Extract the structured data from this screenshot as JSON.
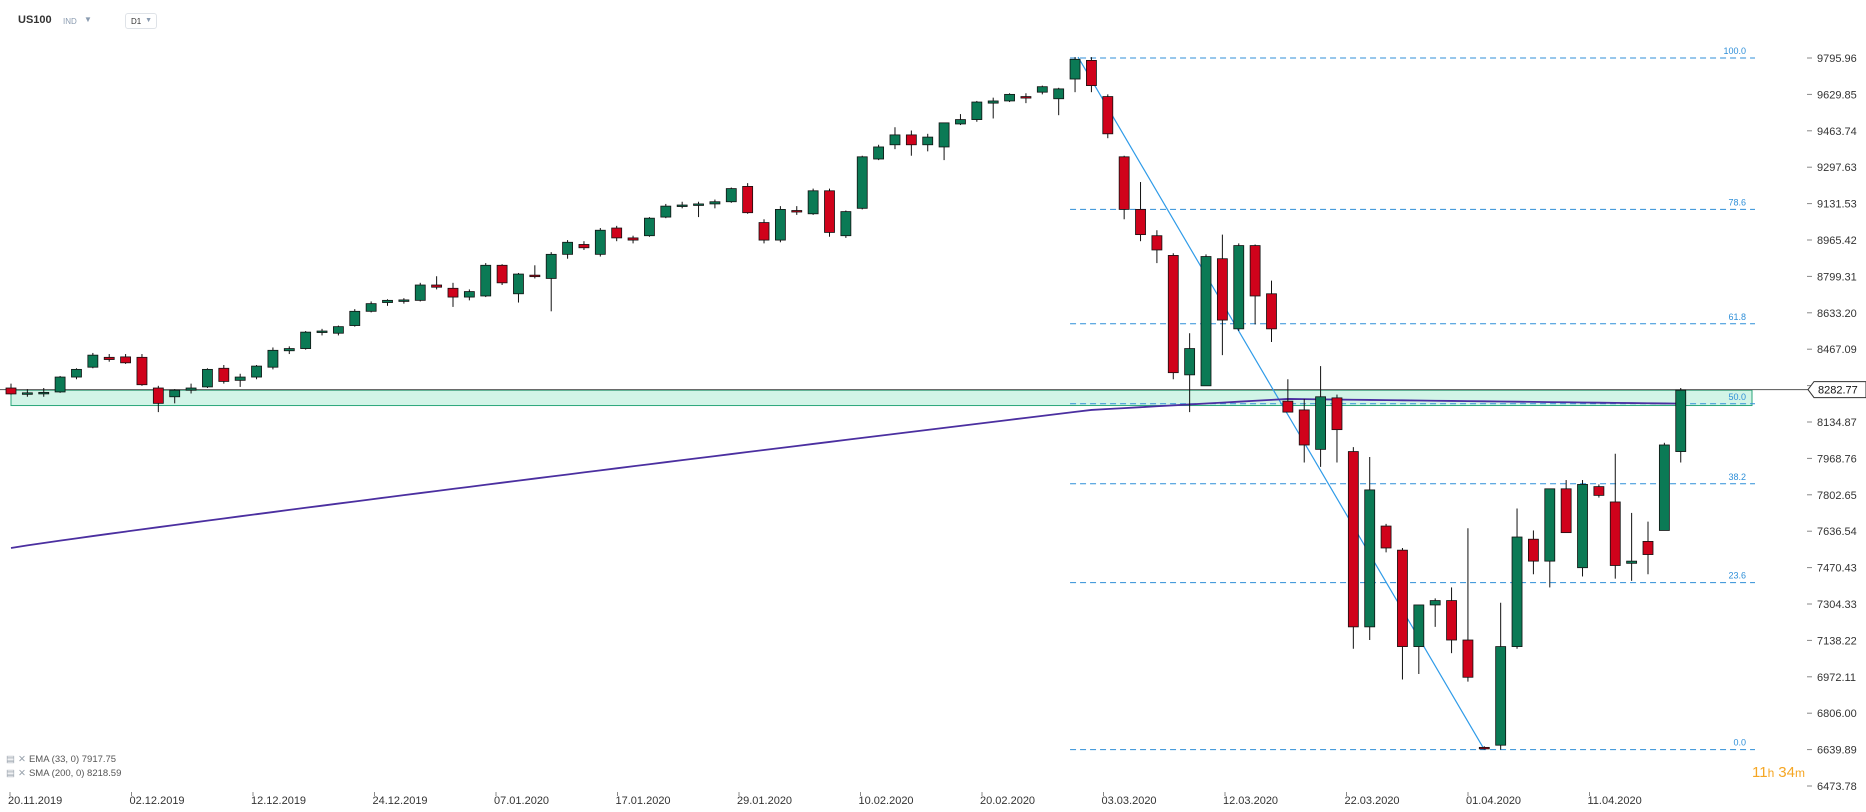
{
  "header": {
    "symbol": "US100",
    "type": "IND",
    "timeframe": "D1"
  },
  "indicators": [
    {
      "label": "EMA (33, 0) 7917.75",
      "color": "#3d3d9e"
    },
    {
      "label": "SMA (200, 0) 8218.59",
      "color": "#1d6fa5"
    }
  ],
  "timer": {
    "hours": "11",
    "h": "h",
    "minutes": "34",
    "m": "m"
  },
  "chart_data": {
    "type": "candlestick",
    "price_axis": {
      "ticks": [
        "9795.96",
        "9629.85",
        "9463.74",
        "9297.63",
        "9131.53",
        "8965.42",
        "8799.31",
        "8633.20",
        "8467.09",
        "8300.98",
        "8134.87",
        "7968.76",
        "7802.65",
        "7636.54",
        "7470.43",
        "7304.33",
        "7138.22",
        "6972.11",
        "6806.00",
        "6639.89",
        "6473.78"
      ],
      "range": [
        6473.78,
        9795.96
      ]
    },
    "date_axis": {
      "labels": [
        "20.11.2019",
        "02.12.2019",
        "12.12.2019",
        "24.12.2019",
        "07.01.2020",
        "17.01.2020",
        "29.01.2020",
        "10.02.2020",
        "20.02.2020",
        "03.03.2020",
        "12.03.2020",
        "22.03.2020",
        "01.04.2020",
        "11.04.2020"
      ]
    },
    "last_price": "8282.77",
    "fibonacci": {
      "levels": [
        {
          "label": "100.0",
          "price": 9795.96
        },
        {
          "label": "78.6",
          "price": 9105
        },
        {
          "label": "61.8",
          "price": 8583
        },
        {
          "label": "50.0",
          "price": 8218
        },
        {
          "label": "38.2",
          "price": 7853
        },
        {
          "label": "23.6",
          "price": 7402
        },
        {
          "label": "0.0",
          "price": 6639.89
        }
      ],
      "line": {
        "from": {
          "index": 0,
          "price": 9795.96
        },
        "to": {
          "index": 0,
          "price": 6639.89
        }
      }
    },
    "support_zone": [
      8210,
      8280
    ],
    "ema33_end": 7917.75,
    "sma200_end": 8218.59,
    "up_color": "#0b7a55",
    "down_color": "#d0021b",
    "candles": [
      {
        "o": 8290,
        "h": 8310,
        "l": 8260,
        "c": 8263
      },
      {
        "o": 8265,
        "h": 8285,
        "l": 8250,
        "c": 8268
      },
      {
        "o": 8268,
        "h": 8290,
        "l": 8250,
        "c": 8270
      },
      {
        "o": 8272,
        "h": 8345,
        "l": 8268,
        "c": 8340
      },
      {
        "o": 8340,
        "h": 8380,
        "l": 8330,
        "c": 8375
      },
      {
        "o": 8385,
        "h": 8450,
        "l": 8380,
        "c": 8440
      },
      {
        "o": 8430,
        "h": 8445,
        "l": 8410,
        "c": 8420
      },
      {
        "o": 8432,
        "h": 8445,
        "l": 8400,
        "c": 8405
      },
      {
        "o": 8430,
        "h": 8445,
        "l": 8300,
        "c": 8305
      },
      {
        "o": 8290,
        "h": 8300,
        "l": 8180,
        "c": 8220
      },
      {
        "o": 8250,
        "h": 8285,
        "l": 8220,
        "c": 8280
      },
      {
        "o": 8280,
        "h": 8310,
        "l": 8265,
        "c": 8290
      },
      {
        "o": 8295,
        "h": 8380,
        "l": 8290,
        "c": 8375
      },
      {
        "o": 8380,
        "h": 8395,
        "l": 8310,
        "c": 8320
      },
      {
        "o": 8325,
        "h": 8355,
        "l": 8295,
        "c": 8340
      },
      {
        "o": 8340,
        "h": 8395,
        "l": 8330,
        "c": 8390
      },
      {
        "o": 8385,
        "h": 8475,
        "l": 8375,
        "c": 8462
      },
      {
        "o": 8460,
        "h": 8480,
        "l": 8445,
        "c": 8470
      },
      {
        "o": 8470,
        "h": 8550,
        "l": 8465,
        "c": 8545
      },
      {
        "o": 8545,
        "h": 8560,
        "l": 8530,
        "c": 8550
      },
      {
        "o": 8540,
        "h": 8575,
        "l": 8530,
        "c": 8570
      },
      {
        "o": 8575,
        "h": 8650,
        "l": 8570,
        "c": 8640
      },
      {
        "o": 8640,
        "h": 8685,
        "l": 8635,
        "c": 8675
      },
      {
        "o": 8680,
        "h": 8695,
        "l": 8665,
        "c": 8690
      },
      {
        "o": 8690,
        "h": 8700,
        "l": 8675,
        "c": 8692
      },
      {
        "o": 8690,
        "h": 8770,
        "l": 8685,
        "c": 8760
      },
      {
        "o": 8760,
        "h": 8800,
        "l": 8740,
        "c": 8750
      },
      {
        "o": 8745,
        "h": 8770,
        "l": 8660,
        "c": 8705
      },
      {
        "o": 8705,
        "h": 8740,
        "l": 8690,
        "c": 8730
      },
      {
        "o": 8710,
        "h": 8860,
        "l": 8705,
        "c": 8850
      },
      {
        "o": 8850,
        "h": 8855,
        "l": 8760,
        "c": 8770
      },
      {
        "o": 8720,
        "h": 8815,
        "l": 8680,
        "c": 8810
      },
      {
        "o": 8805,
        "h": 8850,
        "l": 8790,
        "c": 8800
      },
      {
        "o": 8790,
        "h": 8910,
        "l": 8640,
        "c": 8900
      },
      {
        "o": 8900,
        "h": 8965,
        "l": 8880,
        "c": 8955
      },
      {
        "o": 8945,
        "h": 8960,
        "l": 8920,
        "c": 8930
      },
      {
        "o": 8900,
        "h": 9020,
        "l": 8890,
        "c": 9010
      },
      {
        "o": 9020,
        "h": 9030,
        "l": 8960,
        "c": 8975
      },
      {
        "o": 8975,
        "h": 8985,
        "l": 8950,
        "c": 8965
      },
      {
        "o": 8985,
        "h": 9070,
        "l": 8980,
        "c": 9065
      },
      {
        "o": 9070,
        "h": 9130,
        "l": 9065,
        "c": 9120
      },
      {
        "o": 9120,
        "h": 9140,
        "l": 9110,
        "c": 9125
      },
      {
        "o": 9125,
        "h": 9140,
        "l": 9070,
        "c": 9130
      },
      {
        "o": 9130,
        "h": 9150,
        "l": 9110,
        "c": 9140
      },
      {
        "o": 9140,
        "h": 9205,
        "l": 9135,
        "c": 9200
      },
      {
        "o": 9210,
        "h": 9225,
        "l": 9085,
        "c": 9090
      },
      {
        "o": 9045,
        "h": 9060,
        "l": 8950,
        "c": 8965
      },
      {
        "o": 8965,
        "h": 9120,
        "l": 8955,
        "c": 9105
      },
      {
        "o": 9100,
        "h": 9120,
        "l": 9080,
        "c": 9095
      },
      {
        "o": 9085,
        "h": 9200,
        "l": 9080,
        "c": 9190
      },
      {
        "o": 9190,
        "h": 9200,
        "l": 8980,
        "c": 9000
      },
      {
        "o": 8985,
        "h": 9100,
        "l": 8975,
        "c": 9095
      },
      {
        "o": 9110,
        "h": 9350,
        "l": 9105,
        "c": 9345
      },
      {
        "o": 9335,
        "h": 9400,
        "l": 9330,
        "c": 9390
      },
      {
        "o": 9400,
        "h": 9480,
        "l": 9380,
        "c": 9445
      },
      {
        "o": 9445,
        "h": 9465,
        "l": 9350,
        "c": 9400
      },
      {
        "o": 9400,
        "h": 9450,
        "l": 9370,
        "c": 9435
      },
      {
        "o": 9390,
        "h": 9500,
        "l": 9330,
        "c": 9500
      },
      {
        "o": 9495,
        "h": 9540,
        "l": 9490,
        "c": 9515
      },
      {
        "o": 9515,
        "h": 9600,
        "l": 9505,
        "c": 9595
      },
      {
        "o": 9590,
        "h": 9615,
        "l": 9520,
        "c": 9600
      },
      {
        "o": 9600,
        "h": 9635,
        "l": 9595,
        "c": 9630
      },
      {
        "o": 9620,
        "h": 9635,
        "l": 9590,
        "c": 9615
      },
      {
        "o": 9640,
        "h": 9670,
        "l": 9630,
        "c": 9665
      },
      {
        "o": 9610,
        "h": 9660,
        "l": 9535,
        "c": 9655
      },
      {
        "o": 9700,
        "h": 9800,
        "l": 9640,
        "c": 9790
      },
      {
        "o": 9785,
        "h": 9800,
        "l": 9640,
        "c": 9670
      },
      {
        "o": 9620,
        "h": 9630,
        "l": 9430,
        "c": 9450
      },
      {
        "o": 9345,
        "h": 9350,
        "l": 9060,
        "c": 9105
      },
      {
        "o": 9105,
        "h": 9230,
        "l": 8960,
        "c": 8990
      },
      {
        "o": 8985,
        "h": 9010,
        "l": 8860,
        "c": 8920
      },
      {
        "o": 8895,
        "h": 8905,
        "l": 8330,
        "c": 8360
      },
      {
        "o": 8350,
        "h": 8540,
        "l": 8180,
        "c": 8470
      },
      {
        "o": 8300,
        "h": 8900,
        "l": 8300,
        "c": 8890
      },
      {
        "o": 8880,
        "h": 8990,
        "l": 8440,
        "c": 8600
      },
      {
        "o": 8560,
        "h": 8950,
        "l": 8550,
        "c": 8940
      },
      {
        "o": 8940,
        "h": 8945,
        "l": 8580,
        "c": 8710
      },
      {
        "o": 8720,
        "h": 8780,
        "l": 8500,
        "c": 8560
      },
      {
        "o": 8230,
        "h": 8330,
        "l": 8200,
        "c": 8180
      },
      {
        "o": 8190,
        "h": 8240,
        "l": 7950,
        "c": 8030
      },
      {
        "o": 8010,
        "h": 8390,
        "l": 7930,
        "c": 8250
      },
      {
        "o": 8245,
        "h": 8260,
        "l": 7950,
        "c": 8100
      },
      {
        "o": 8000,
        "h": 8020,
        "l": 7100,
        "c": 7200
      },
      {
        "o": 7200,
        "h": 7975,
        "l": 7140,
        "c": 7825
      },
      {
        "o": 7660,
        "h": 7670,
        "l": 7540,
        "c": 7560
      },
      {
        "o": 7550,
        "h": 7560,
        "l": 6960,
        "c": 7110
      },
      {
        "o": 7110,
        "h": 7300,
        "l": 6985,
        "c": 7300
      },
      {
        "o": 7300,
        "h": 7330,
        "l": 7200,
        "c": 7320
      },
      {
        "o": 7320,
        "h": 7380,
        "l": 7080,
        "c": 7140
      },
      {
        "o": 7140,
        "h": 7650,
        "l": 6950,
        "c": 6970
      },
      {
        "o": 6650,
        "h": 6655,
        "l": 6640,
        "c": 6645
      },
      {
        "o": 6660,
        "h": 7310,
        "l": 6640,
        "c": 7110
      },
      {
        "o": 7110,
        "h": 7740,
        "l": 7100,
        "c": 7610
      },
      {
        "o": 7600,
        "h": 7640,
        "l": 7440,
        "c": 7500
      },
      {
        "o": 7500,
        "h": 7800,
        "l": 7380,
        "c": 7830
      },
      {
        "o": 7830,
        "h": 7870,
        "l": 7630,
        "c": 7630
      },
      {
        "o": 7470,
        "h": 7870,
        "l": 7430,
        "c": 7850
      },
      {
        "o": 7840,
        "h": 7850,
        "l": 7790,
        "c": 7800
      },
      {
        "o": 7770,
        "h": 7990,
        "l": 7420,
        "c": 7480
      },
      {
        "o": 7490,
        "h": 7720,
        "l": 7410,
        "c": 7500
      },
      {
        "o": 7590,
        "h": 7680,
        "l": 7440,
        "c": 7530
      },
      {
        "o": 7640,
        "h": 8040,
        "l": 7640,
        "c": 8030
      },
      {
        "o": 8000,
        "h": 8290,
        "l": 7950,
        "c": 8280
      }
    ]
  }
}
